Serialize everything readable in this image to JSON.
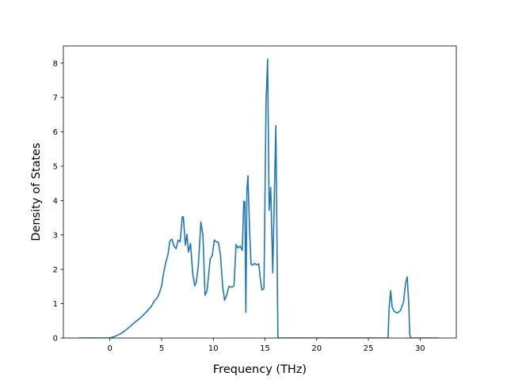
{
  "chart_data": {
    "type": "line",
    "title": "",
    "xlabel": "Frequency (THz)",
    "ylabel": "Density of States",
    "xlim": [
      -4.5,
      33.5
    ],
    "ylim": [
      0,
      8.5
    ],
    "xticks": [
      0,
      5,
      10,
      15,
      20,
      25,
      30
    ],
    "yticks": [
      0,
      1,
      2,
      3,
      4,
      5,
      6,
      7,
      8
    ],
    "grid": false,
    "legend": "none",
    "colors": {
      "line": "#1f77b4",
      "axes": "#000000",
      "background": "#ffffff"
    },
    "series": [
      {
        "x": [
          -3.0,
          0.0,
          0.5,
          1.0,
          1.5,
          2.0,
          2.5,
          3.0,
          3.5,
          4.0,
          4.3,
          4.6,
          4.8,
          5.0,
          5.2,
          5.4,
          5.6,
          5.8,
          6.0,
          6.2,
          6.4,
          6.6,
          6.8,
          7.0,
          7.1,
          7.3,
          7.45,
          7.6,
          7.8,
          8.0,
          8.2,
          8.35,
          8.55,
          8.8,
          9.0,
          9.2,
          9.4,
          9.5,
          9.7,
          9.9,
          10.1,
          10.3,
          10.5,
          10.7,
          10.9,
          11.1,
          11.3,
          11.5,
          11.8,
          12.0,
          12.2,
          12.4,
          12.6,
          12.8,
          12.95,
          13.05,
          13.15,
          13.25,
          13.35,
          13.5,
          13.65,
          13.8,
          14.0,
          14.2,
          14.4,
          14.55,
          14.7,
          14.9,
          15.1,
          15.25,
          15.4,
          15.55,
          15.75,
          15.9,
          16.05,
          16.25,
          16.35,
          16.45,
          16.55,
          16.65,
          20.0,
          26.9,
          27.0,
          27.15,
          27.3,
          27.5,
          27.8,
          28.1,
          28.4,
          28.6,
          28.75,
          28.9,
          29.0,
          29.1,
          29.3,
          30.0,
          31.8
        ],
        "y": [
          0,
          0,
          0.05,
          0.12,
          0.22,
          0.35,
          0.48,
          0.6,
          0.75,
          0.92,
          1.08,
          1.18,
          1.32,
          1.52,
          1.9,
          2.2,
          2.4,
          2.82,
          2.88,
          2.68,
          2.6,
          2.85,
          2.8,
          3.52,
          3.53,
          2.7,
          3.02,
          2.5,
          2.75,
          1.9,
          1.52,
          1.62,
          2.1,
          3.38,
          2.98,
          1.25,
          1.38,
          1.7,
          2.3,
          2.4,
          2.85,
          2.8,
          2.78,
          2.4,
          1.5,
          1.1,
          1.25,
          1.5,
          1.48,
          1.52,
          2.72,
          2.62,
          2.68,
          2.55,
          3.98,
          3.96,
          0.75,
          4.3,
          4.72,
          3.2,
          2.15,
          2.12,
          2.17,
          2.13,
          2.16,
          1.72,
          1.4,
          1.45,
          6.85,
          8.12,
          3.72,
          4.38,
          1.9,
          4.1,
          6.18,
          0.02,
          0,
          0,
          0,
          0,
          0,
          0,
          0.85,
          1.38,
          0.9,
          0.77,
          0.73,
          0.8,
          1.05,
          1.6,
          1.78,
          1.0,
          0.1,
          0,
          0,
          0,
          0
        ]
      }
    ]
  }
}
